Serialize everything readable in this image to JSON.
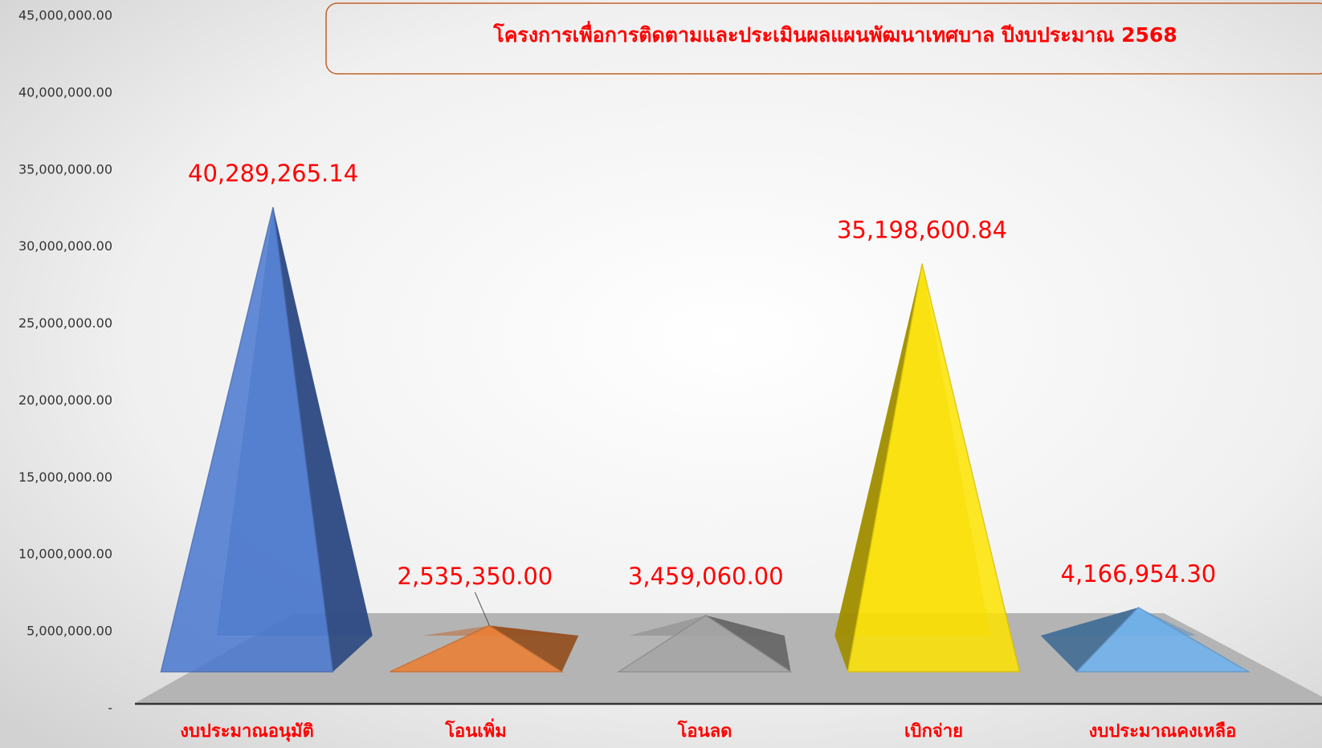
{
  "chart_data": {
    "type": "pyramid",
    "title": "โครงการเพื่อการติดตามและประเมินผลแผนพัฒนาเทศบาล ปีงบประมาณ 2568",
    "categories": [
      "งบประมาณอนุมัติ",
      "โอนเพิ่ม",
      "โอนลด",
      "เบิกจ่าย",
      "งบประมาณคงเหลือ"
    ],
    "values": [
      40289265.14,
      2535350,
      3459060,
      35198600.84,
      4166954.3
    ],
    "value_labels": [
      "40,289,265.14",
      "2,535,350.00",
      "3,459,060.00",
      "35,198,600.84",
      "4,166,954.30"
    ],
    "colors": [
      "#4a78d0",
      "#ed7d31",
      "#a5a5a5",
      "#ffe400",
      "#6eb2f0"
    ],
    "ylim": [
      0,
      45000000
    ],
    "yticks": [
      {
        "value": 0,
        "label": "-"
      },
      {
        "value": 5000000,
        "label": "5,000,000.00"
      },
      {
        "value": 10000000,
        "label": "10,000,000.00"
      },
      {
        "value": 15000000,
        "label": "15,000,000.00"
      },
      {
        "value": 20000000,
        "label": "20,000,000.00"
      },
      {
        "value": 25000000,
        "label": "25,000,000.00"
      },
      {
        "value": 30000000,
        "label": "30,000,000.00"
      },
      {
        "value": 35000000,
        "label": "35,000,000.00"
      },
      {
        "value": 40000000,
        "label": "40,000,000.00"
      },
      {
        "value": 45000000,
        "label": "45,000,000.00"
      }
    ],
    "grid": false
  }
}
